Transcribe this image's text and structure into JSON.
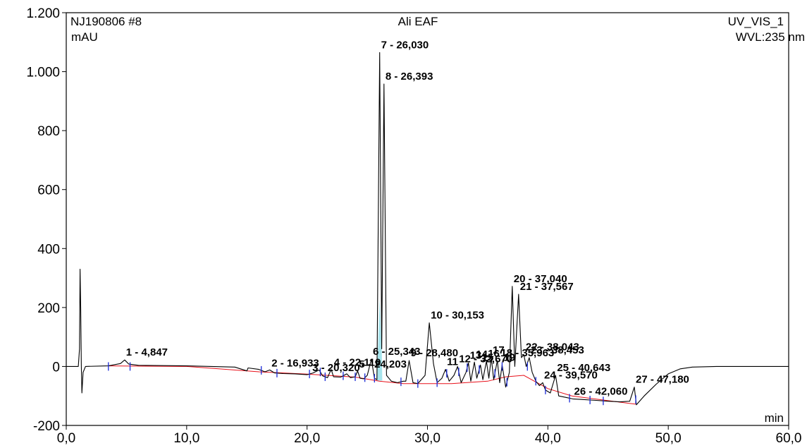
{
  "header": {
    "sample": "NJ190806 #8",
    "title": "Ali EAF",
    "channel": "UV_VIS_1",
    "wavelength": "WVL:235 nm"
  },
  "chart_data": {
    "type": "line",
    "title": "Ali EAF",
    "ylabel": "mAU",
    "xlabel": "min",
    "xlim": [
      0,
      60
    ],
    "ylim": [
      -200,
      1200
    ],
    "x_ticks": [
      {
        "v": 0,
        "label": "0,0"
      },
      {
        "v": 10,
        "label": "10,0"
      },
      {
        "v": 20,
        "label": "20,0"
      },
      {
        "v": 30,
        "label": "30,0"
      },
      {
        "v": 40,
        "label": "40,0"
      },
      {
        "v": 50,
        "label": "50,0"
      },
      {
        "v": 60,
        "label": "60,0"
      }
    ],
    "y_ticks": [
      {
        "v": -200,
        "label": "-200"
      },
      {
        "v": 0,
        "label": "0"
      },
      {
        "v": 200,
        "label": "200"
      },
      {
        "v": 400,
        "label": "400"
      },
      {
        "v": 600,
        "label": "600"
      },
      {
        "v": 800,
        "label": "800"
      },
      {
        "v": 1000,
        "label": "1.000"
      },
      {
        "v": 1200,
        "label": "1.200"
      }
    ],
    "series": [
      {
        "values": [
          [
            0.0,
            0
          ],
          [
            1.0,
            0
          ],
          [
            1.1,
            60
          ],
          [
            1.15,
            330
          ],
          [
            1.2,
            200
          ],
          [
            1.25,
            0
          ],
          [
            1.3,
            -90
          ],
          [
            1.4,
            -20
          ],
          [
            1.6,
            0
          ],
          [
            3.5,
            2
          ],
          [
            4.5,
            10
          ],
          [
            4.85,
            22
          ],
          [
            5.2,
            8
          ],
          [
            6,
            4
          ],
          [
            8,
            3
          ],
          [
            10,
            2
          ],
          [
            12,
            0
          ],
          [
            14,
            -2
          ],
          [
            15,
            -15
          ],
          [
            15.1,
            -5
          ],
          [
            16,
            -10
          ],
          [
            16.5,
            -18
          ],
          [
            16.9,
            -12
          ],
          [
            17.3,
            -22
          ],
          [
            18,
            -24
          ],
          [
            19,
            -25
          ],
          [
            20,
            -28
          ],
          [
            20.5,
            -22
          ],
          [
            21,
            -12
          ],
          [
            21.3,
            -32
          ],
          [
            21.7,
            -38
          ],
          [
            22.0,
            -10
          ],
          [
            22.2,
            -35
          ],
          [
            22.8,
            -36
          ],
          [
            23.3,
            -25
          ],
          [
            23.6,
            -38
          ],
          [
            24.0,
            -35
          ],
          [
            24.2,
            -15
          ],
          [
            24.4,
            -40
          ],
          [
            24.7,
            -42
          ],
          [
            25.0,
            -30
          ],
          [
            25.34,
            25
          ],
          [
            25.6,
            -40
          ],
          [
            25.8,
            -45
          ],
          [
            26.03,
            1065
          ],
          [
            26.2,
            60
          ],
          [
            26.39,
            958
          ],
          [
            26.6,
            -30
          ],
          [
            27.0,
            -50
          ],
          [
            27.5,
            -55
          ],
          [
            28.0,
            -50
          ],
          [
            28.2,
            -50
          ],
          [
            28.48,
            20
          ],
          [
            28.8,
            -55
          ],
          [
            29.2,
            -58
          ],
          [
            29.8,
            -30
          ],
          [
            30.153,
            148
          ],
          [
            30.5,
            10
          ],
          [
            30.8,
            -55
          ],
          [
            31.2,
            -40
          ],
          [
            31.5,
            -10
          ],
          [
            31.8,
            -50
          ],
          [
            32.2,
            -30
          ],
          [
            32.5,
            0
          ],
          [
            32.8,
            -55
          ],
          [
            33.2,
            -20
          ],
          [
            33.4,
            12
          ],
          [
            33.6,
            -50
          ],
          [
            33.9,
            15
          ],
          [
            34.1,
            -40
          ],
          [
            34.4,
            5
          ],
          [
            34.6,
            -45
          ],
          [
            34.9,
            18
          ],
          [
            35.1,
            -40
          ],
          [
            35.3,
            30
          ],
          [
            35.5,
            -45
          ],
          [
            35.8,
            20
          ],
          [
            36.0,
            -55
          ],
          [
            36.2,
            5
          ],
          [
            36.5,
            -70
          ],
          [
            36.8,
            -20
          ],
          [
            37.04,
            272
          ],
          [
            37.25,
            0
          ],
          [
            37.567,
            245
          ],
          [
            37.8,
            30
          ],
          [
            38.0,
            40
          ],
          [
            38.2,
            0
          ],
          [
            38.45,
            30
          ],
          [
            38.7,
            -20
          ],
          [
            39.0,
            -50
          ],
          [
            39.3,
            -65
          ],
          [
            39.57,
            -55
          ],
          [
            39.8,
            -80
          ],
          [
            40.2,
            -90
          ],
          [
            40.643,
            -30
          ],
          [
            40.9,
            -100
          ],
          [
            41.5,
            -105
          ],
          [
            42.06,
            -110
          ],
          [
            42.8,
            -112
          ],
          [
            44,
            -115
          ],
          [
            45,
            -118
          ],
          [
            46,
            -120
          ],
          [
            46.8,
            -118
          ],
          [
            47.18,
            -70
          ],
          [
            47.35,
            -130
          ],
          [
            48,
            -100
          ],
          [
            49,
            -60
          ],
          [
            50,
            -25
          ],
          [
            51,
            -8
          ],
          [
            52,
            -2
          ],
          [
            54,
            0
          ],
          [
            56,
            0
          ],
          [
            58,
            0
          ],
          [
            60,
            0
          ]
        ]
      }
    ],
    "baseline": [
      [
        3.5,
        2
      ],
      [
        10,
        0
      ],
      [
        16,
        -18
      ],
      [
        20,
        -26
      ],
      [
        24,
        -36
      ],
      [
        26,
        -50
      ],
      [
        28,
        -58
      ],
      [
        32,
        -58
      ],
      [
        35,
        -50
      ],
      [
        36.5,
        -35
      ],
      [
        38,
        -30
      ],
      [
        40,
        -75
      ],
      [
        42,
        -100
      ],
      [
        47.3,
        -128
      ]
    ],
    "markers": [
      3.5,
      5.3,
      16.2,
      17.5,
      20.2,
      21.1,
      21.5,
      23.0,
      24.0,
      24.8,
      25.6,
      27.8,
      29.2,
      30.8,
      31.6,
      32.6,
      33.3,
      34.3,
      35.6,
      36.2,
      36.6,
      38.3,
      39.0,
      39.8,
      41.8,
      43.5,
      44.6,
      47.3
    ],
    "peaks": [
      {
        "label": "1 - 4,847",
        "x": 4.847,
        "y": 22
      },
      {
        "label": "2 - 16,933",
        "x": 16.93,
        "y": -14
      },
      {
        "label": "3 - 20,320",
        "x": 20.32,
        "y": -30
      },
      {
        "label": "4 - 22,110",
        "x": 22.11,
        "y": -12
      },
      {
        "label": "5 - 24,203",
        "x": 24.2,
        "y": -18
      },
      {
        "label": "6 - 25,343",
        "x": 25.343,
        "y": 25
      },
      {
        "label": "7 - 26,030",
        "x": 26.03,
        "y": 1065
      },
      {
        "label": "8 - 26,393",
        "x": 26.393,
        "y": 958
      },
      {
        "label": "9 - 28,480",
        "x": 28.48,
        "y": 20
      },
      {
        "label": "10 - 30,153",
        "x": 30.153,
        "y": 148
      },
      {
        "label": "11",
        "x": 31.5,
        "y": -10
      },
      {
        "label": "12 - 32,670",
        "x": 32.5,
        "y": 0
      },
      {
        "label": "13",
        "x": 33.4,
        "y": 12
      },
      {
        "label": "14",
        "x": 33.9,
        "y": 15
      },
      {
        "label": "15",
        "x": 34.4,
        "y": 5
      },
      {
        "label": "16",
        "x": 34.9,
        "y": 18
      },
      {
        "label": "17",
        "x": 35.3,
        "y": 30
      },
      {
        "label": "18 - 35,963",
        "x": 35.963,
        "y": 20
      },
      {
        "label": "19",
        "x": 36.2,
        "y": 5
      },
      {
        "label": "20 - 37,040",
        "x": 37.04,
        "y": 272
      },
      {
        "label": "21 - 37,567",
        "x": 37.567,
        "y": 245
      },
      {
        "label": "22 - 38,043",
        "x": 38.043,
        "y": 40
      },
      {
        "label": "23 - 38,453",
        "x": 38.453,
        "y": 30
      },
      {
        "label": "24 - 39,570",
        "x": 39.57,
        "y": -55
      },
      {
        "label": "25 - 40,643",
        "x": 40.643,
        "y": -30
      },
      {
        "label": "26 - 42,060",
        "x": 42.06,
        "y": -110
      },
      {
        "label": "27 - 47,180",
        "x": 47.18,
        "y": -70
      }
    ],
    "shaded_peak": {
      "x_start": 25.8,
      "x_end": 26.25,
      "color": "#a6e4ec"
    }
  }
}
